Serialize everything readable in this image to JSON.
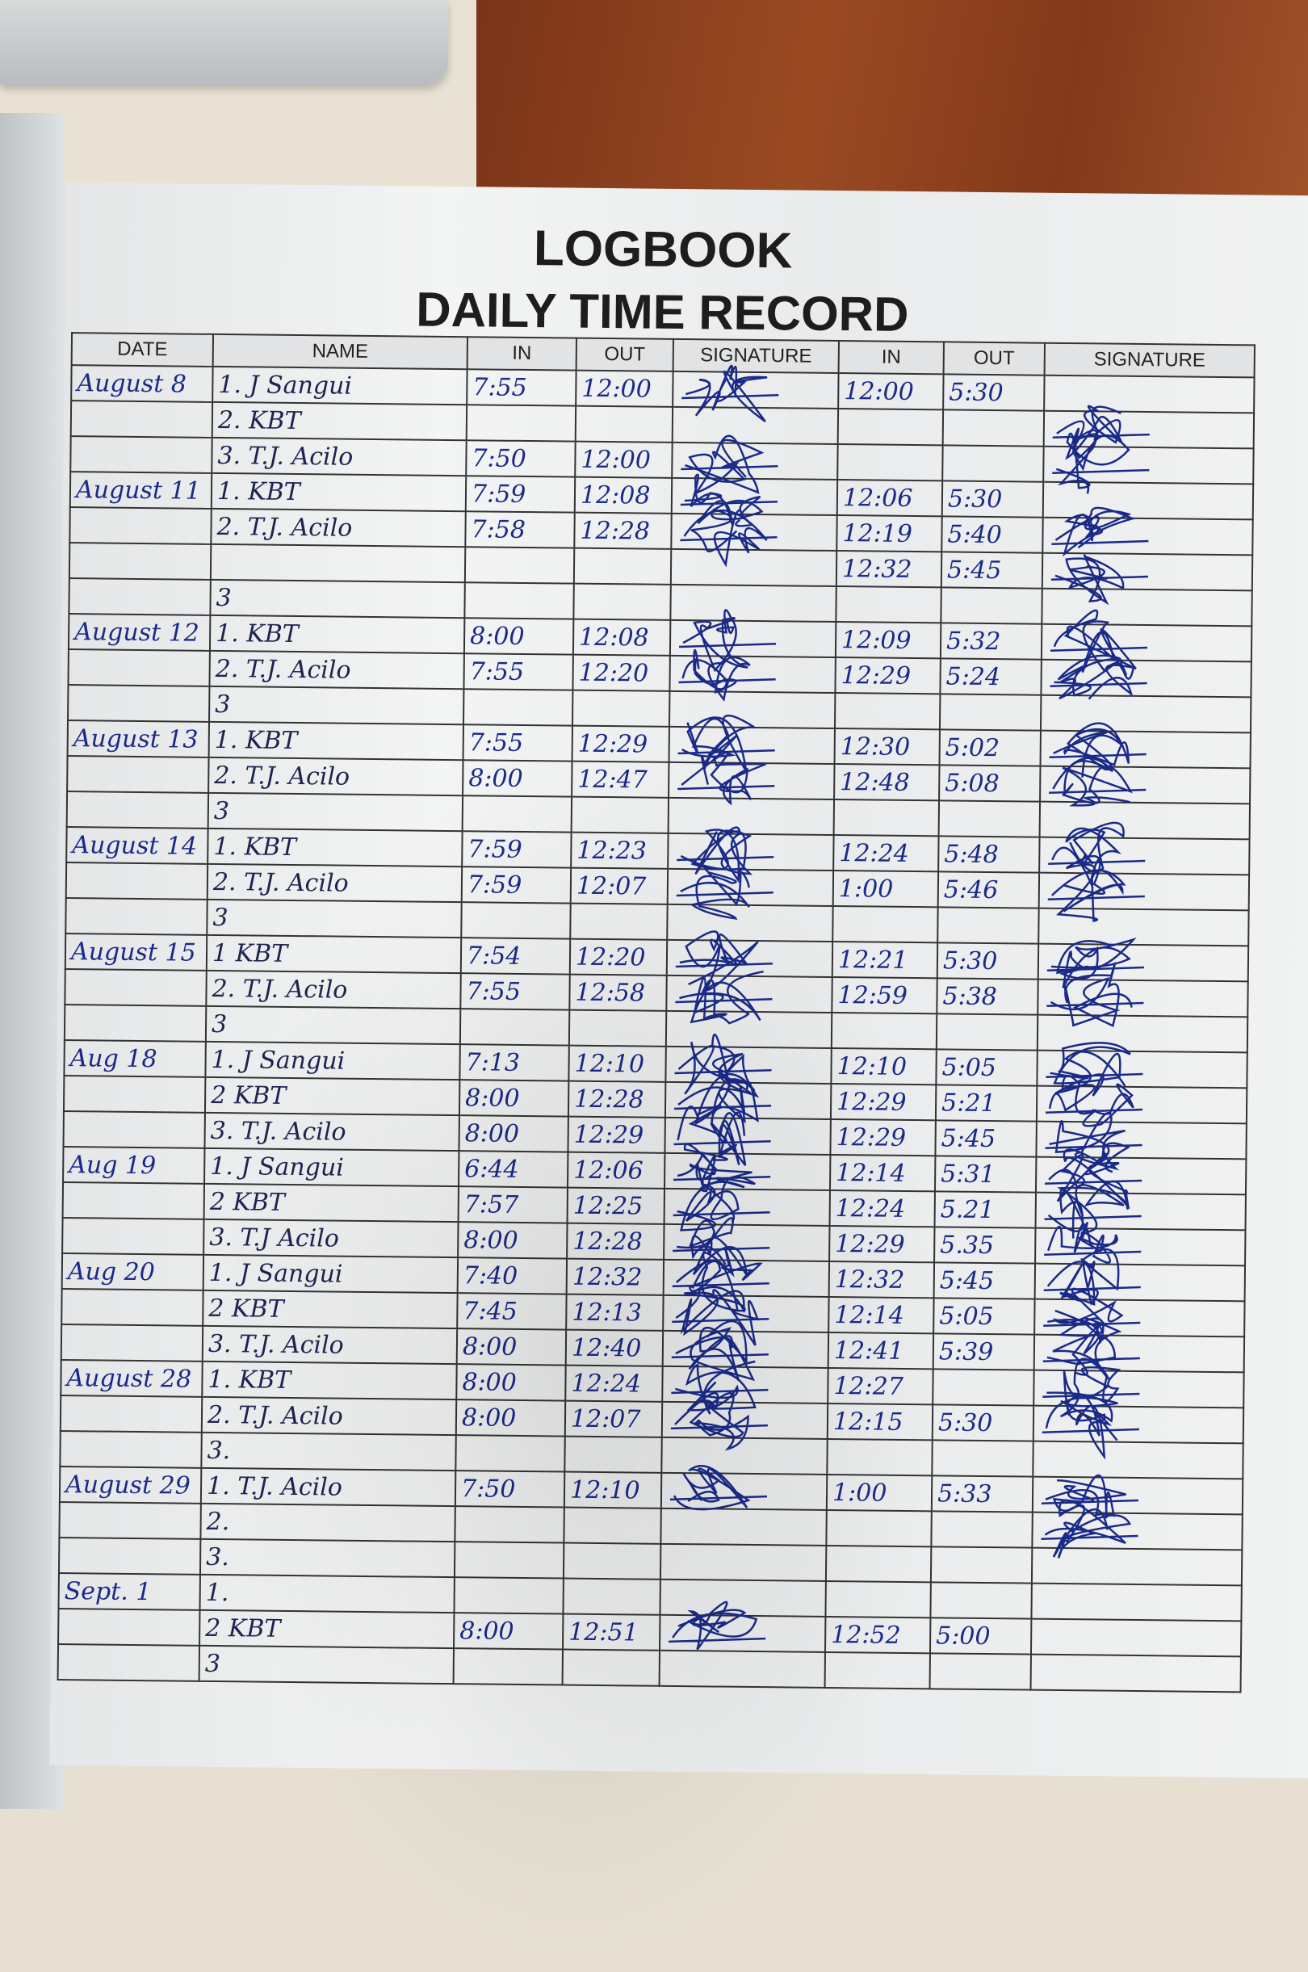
{
  "title": "LOGBOOK",
  "subtitle": "DAILY TIME RECORD",
  "headers": [
    "DATE",
    "NAME",
    "IN",
    "OUT",
    "SIGNATURE",
    "IN",
    "OUT",
    "SIGNATURE"
  ],
  "ink_color": "#1a2a88",
  "rows": [
    {
      "date": "August 8",
      "name": "1. J Sangui",
      "in1": "7:55",
      "out1": "12:00",
      "sig1": true,
      "in2": "12:00",
      "out2": "5:30",
      "sig2": false
    },
    {
      "date": "",
      "name": "2. KBT",
      "in1": "",
      "out1": "",
      "sig1": false,
      "in2": "",
      "out2": "",
      "sig2": true
    },
    {
      "date": "",
      "name": "3. T.J. Acilo",
      "in1": "7:50",
      "out1": "12:00",
      "sig1": true,
      "in2": "",
      "out2": "",
      "sig2": true
    },
    {
      "date": "August 11",
      "name": "1. KBT",
      "in1": "7:59",
      "out1": "12:08",
      "sig1": true,
      "in2": "12:06",
      "out2": "5:30",
      "sig2": false
    },
    {
      "date": "",
      "name": "2. T.J. Acilo",
      "in1": "7:58",
      "out1": "12:28",
      "sig1": true,
      "in2": "12:19",
      "out2": "5:40",
      "sig2": true
    },
    {
      "date": "",
      "name": "",
      "in1": "",
      "out1": "",
      "sig1": false,
      "in2": "12:32",
      "out2": "5:45",
      "sig2": true
    },
    {
      "date": "",
      "name": "3",
      "in1": "",
      "out1": "",
      "sig1": false,
      "in2": "",
      "out2": "",
      "sig2": false
    },
    {
      "date": "August 12",
      "name": "1. KBT",
      "in1": "8:00",
      "out1": "12:08",
      "sig1": true,
      "in2": "12:09",
      "out2": "5:32",
      "sig2": true
    },
    {
      "date": "",
      "name": "2. T.J. Acilo",
      "in1": "7:55",
      "out1": "12:20",
      "sig1": true,
      "in2": "12:29",
      "out2": "5:24",
      "sig2": true
    },
    {
      "date": "",
      "name": "3",
      "in1": "",
      "out1": "",
      "sig1": false,
      "in2": "",
      "out2": "",
      "sig2": false
    },
    {
      "date": "August 13",
      "name": "1. KBT",
      "in1": "7:55",
      "out1": "12:29",
      "sig1": true,
      "in2": "12:30",
      "out2": "5:02",
      "sig2": true
    },
    {
      "date": "",
      "name": "2. T.J. Acilo",
      "in1": "8:00",
      "out1": "12:47",
      "sig1": true,
      "in2": "12:48",
      "out2": "5:08",
      "sig2": true
    },
    {
      "date": "",
      "name": "3",
      "in1": "",
      "out1": "",
      "sig1": false,
      "in2": "",
      "out2": "",
      "sig2": false
    },
    {
      "date": "August 14",
      "name": "1. KBT",
      "in1": "7:59",
      "out1": "12:23",
      "sig1": true,
      "in2": "12:24",
      "out2": "5:48",
      "sig2": true
    },
    {
      "date": "",
      "name": "2. T.J. Acilo",
      "in1": "7:59",
      "out1": "12:07",
      "sig1": true,
      "in2": "1:00",
      "out2": "5:46",
      "sig2": true
    },
    {
      "date": "",
      "name": "3",
      "in1": "",
      "out1": "",
      "sig1": false,
      "in2": "",
      "out2": "",
      "sig2": false
    },
    {
      "date": "August 15",
      "name": "1 KBT",
      "in1": "7:54",
      "out1": "12:20",
      "sig1": true,
      "in2": "12:21",
      "out2": "5:30",
      "sig2": true
    },
    {
      "date": "",
      "name": "2. T.J. Acilo",
      "in1": "7:55",
      "out1": "12:58",
      "sig1": true,
      "in2": "12:59",
      "out2": "5:38",
      "sig2": true
    },
    {
      "date": "",
      "name": "3",
      "in1": "",
      "out1": "",
      "sig1": false,
      "in2": "",
      "out2": "",
      "sig2": false
    },
    {
      "date": "Aug 18",
      "name": "1. J Sangui",
      "in1": "7:13",
      "out1": "12:10",
      "sig1": true,
      "in2": "12:10",
      "out2": "5:05",
      "sig2": true
    },
    {
      "date": "",
      "name": "2 KBT",
      "in1": "8:00",
      "out1": "12:28",
      "sig1": true,
      "in2": "12:29",
      "out2": "5:21",
      "sig2": true
    },
    {
      "date": "",
      "name": "3. T.J. Acilo",
      "in1": "8:00",
      "out1": "12:29",
      "sig1": true,
      "in2": "12:29",
      "out2": "5:45",
      "sig2": true
    },
    {
      "date": "Aug 19",
      "name": "1. J Sangui",
      "in1": "6:44",
      "out1": "12:06",
      "sig1": true,
      "in2": "12:14",
      "out2": "5:31",
      "sig2": true
    },
    {
      "date": "",
      "name": "2 KBT",
      "in1": "7:57",
      "out1": "12:25",
      "sig1": true,
      "in2": "12:24",
      "out2": "5.21",
      "sig2": true
    },
    {
      "date": "",
      "name": "3. T.J Acilo",
      "in1": "8:00",
      "out1": "12:28",
      "sig1": true,
      "in2": "12:29",
      "out2": "5.35",
      "sig2": true
    },
    {
      "date": "Aug 20",
      "name": "1. J Sangui",
      "in1": "7:40",
      "out1": "12:32",
      "sig1": true,
      "in2": "12:32",
      "out2": "5:45",
      "sig2": true
    },
    {
      "date": "",
      "name": "2 KBT",
      "in1": "7:45",
      "out1": "12:13",
      "sig1": true,
      "in2": "12:14",
      "out2": "5:05",
      "sig2": true
    },
    {
      "date": "",
      "name": "3. T.J. Acilo",
      "in1": "8:00",
      "out1": "12:40",
      "sig1": true,
      "in2": "12:41",
      "out2": "5:39",
      "sig2": true
    },
    {
      "date": "August 28",
      "name": "1. KBT",
      "in1": "8:00",
      "out1": "12:24",
      "sig1": true,
      "in2": "12:27",
      "out2": "",
      "sig2": true
    },
    {
      "date": "",
      "name": "2. T.J. Acilo",
      "in1": "8:00",
      "out1": "12:07",
      "sig1": true,
      "in2": "12:15",
      "out2": "5:30",
      "sig2": true
    },
    {
      "date": "",
      "name": "3.",
      "in1": "",
      "out1": "",
      "sig1": false,
      "in2": "",
      "out2": "",
      "sig2": false
    },
    {
      "date": "August 29",
      "name": "1. T.J. Acilo",
      "in1": "7:50",
      "out1": "12:10",
      "sig1": true,
      "in2": "1:00",
      "out2": "5:33",
      "sig2": true
    },
    {
      "date": "",
      "name": "2.",
      "in1": "",
      "out1": "",
      "sig1": false,
      "in2": "",
      "out2": "",
      "sig2": true
    },
    {
      "date": "",
      "name": "3.",
      "in1": "",
      "out1": "",
      "sig1": false,
      "in2": "",
      "out2": "",
      "sig2": false
    },
    {
      "date": "Sept. 1",
      "name": "1.",
      "in1": "",
      "out1": "",
      "sig1": false,
      "in2": "",
      "out2": "",
      "sig2": false
    },
    {
      "date": "",
      "name": "2 KBT",
      "in1": "8:00",
      "out1": "12:51",
      "sig1": true,
      "in2": "12:52",
      "out2": "5:00",
      "sig2": false
    },
    {
      "date": "",
      "name": "3",
      "in1": "",
      "out1": "",
      "sig1": false,
      "in2": "",
      "out2": "",
      "sig2": false
    }
  ]
}
